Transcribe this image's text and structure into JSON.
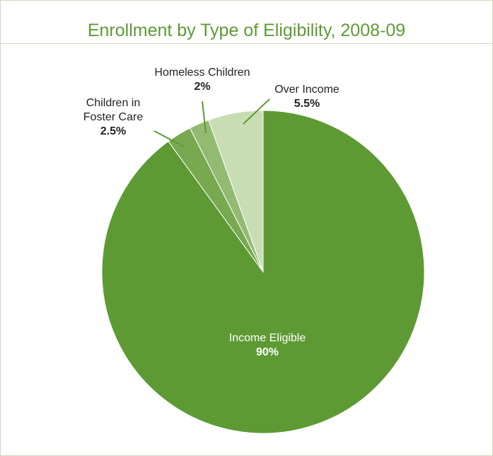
{
  "chart_data": {
    "type": "pie",
    "title": "Enrollment by Type of Eligibility, 2008-09",
    "slices": [
      {
        "label": "Income Eligible",
        "value": 90,
        "value_label": "90%",
        "color": "#5e9a34"
      },
      {
        "label": "Children in Foster Care",
        "label_lines": [
          "Children in",
          "Foster Care"
        ],
        "value": 2.5,
        "value_label": "2.5%",
        "color": "#78a84f"
      },
      {
        "label": "Homeless Children",
        "value": 2,
        "value_label": "2%",
        "color": "#93ba72"
      },
      {
        "label": "Over Income",
        "value": 5.5,
        "value_label": "5.5%",
        "color": "#c9ddb5"
      }
    ],
    "start_angle": "12 o'clock",
    "direction": "clockwise",
    "legend": "none (labels on/around slices)",
    "grid": false
  }
}
